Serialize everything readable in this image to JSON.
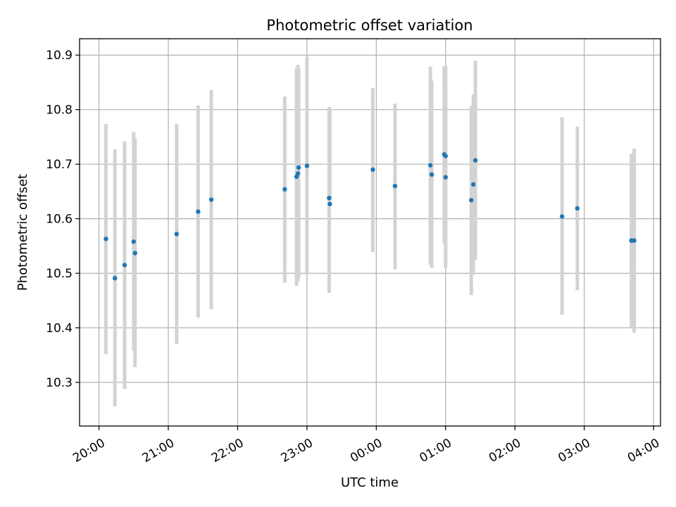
{
  "chart_data": {
    "type": "scatter",
    "title": "Photometric offset variation",
    "xlabel": "UTC time",
    "ylabel": "Photometric offset",
    "x_ticks": [
      "20:00",
      "21:00",
      "22:00",
      "23:00",
      "00:00",
      "01:00",
      "02:00",
      "03:00",
      "04:00"
    ],
    "x_tick_hours": [
      0,
      1,
      2,
      3,
      4,
      5,
      6,
      7,
      8
    ],
    "xlim_hours_after_20h": [
      -0.28,
      8.1
    ],
    "ylim": [
      10.22,
      10.93
    ],
    "y_ticks": [
      10.3,
      10.4,
      10.5,
      10.6,
      10.7,
      10.8,
      10.9
    ],
    "grid": true,
    "marker_color": "#1f77b4",
    "errorbar_color": "#d3d3d3",
    "points": [
      {
        "t": 0.1,
        "y": 10.563,
        "lo": 10.352,
        "hi": 10.774
      },
      {
        "t": 0.23,
        "y": 10.491,
        "lo": 10.256,
        "hi": 10.727
      },
      {
        "t": 0.37,
        "y": 10.515,
        "lo": 10.288,
        "hi": 10.742
      },
      {
        "t": 0.5,
        "y": 10.558,
        "lo": 10.358,
        "hi": 10.759
      },
      {
        "t": 0.52,
        "y": 10.537,
        "lo": 10.328,
        "hi": 10.747
      },
      {
        "t": 1.12,
        "y": 10.572,
        "lo": 10.37,
        "hi": 10.774
      },
      {
        "t": 1.43,
        "y": 10.613,
        "lo": 10.419,
        "hi": 10.808
      },
      {
        "t": 1.62,
        "y": 10.635,
        "lo": 10.434,
        "hi": 10.836
      },
      {
        "t": 2.68,
        "y": 10.654,
        "lo": 10.483,
        "hi": 10.824
      },
      {
        "t": 2.85,
        "y": 10.677,
        "lo": 10.477,
        "hi": 10.877
      },
      {
        "t": 2.87,
        "y": 10.683,
        "lo": 10.485,
        "hi": 10.882
      },
      {
        "t": 2.88,
        "y": 10.694,
        "lo": 10.492,
        "hi": 10.876
      },
      {
        "t": 3.0,
        "y": 10.697,
        "lo": 10.497,
        "hi": 10.897
      },
      {
        "t": 3.32,
        "y": 10.638,
        "lo": 10.464,
        "hi": 10.805
      },
      {
        "t": 3.33,
        "y": 10.627,
        "lo": 10.63,
        "hi": 10.8
      },
      {
        "t": 3.95,
        "y": 10.69,
        "lo": 10.539,
        "hi": 10.84
      },
      {
        "t": 4.27,
        "y": 10.66,
        "lo": 10.507,
        "hi": 10.811
      },
      {
        "t": 4.78,
        "y": 10.698,
        "lo": 10.516,
        "hi": 10.879
      },
      {
        "t": 4.8,
        "y": 10.681,
        "lo": 10.51,
        "hi": 10.853
      },
      {
        "t": 4.98,
        "y": 10.718,
        "lo": 10.555,
        "hi": 10.88
      },
      {
        "t": 5.0,
        "y": 10.715,
        "lo": 10.512,
        "hi": 10.88
      },
      {
        "t": 5.0,
        "y": 10.676,
        "lo": 10.51,
        "hi": 10.842
      },
      {
        "t": 5.37,
        "y": 10.634,
        "lo": 10.46,
        "hi": 10.807
      },
      {
        "t": 5.4,
        "y": 10.663,
        "lo": 10.497,
        "hi": 10.828
      },
      {
        "t": 5.43,
        "y": 10.707,
        "lo": 10.525,
        "hi": 10.89
      },
      {
        "t": 6.68,
        "y": 10.604,
        "lo": 10.424,
        "hi": 10.786
      },
      {
        "t": 6.9,
        "y": 10.619,
        "lo": 10.469,
        "hi": 10.769
      },
      {
        "t": 7.68,
        "y": 10.56,
        "lo": 10.4,
        "hi": 10.719
      },
      {
        "t": 7.72,
        "y": 10.56,
        "lo": 10.391,
        "hi": 10.729
      }
    ]
  }
}
